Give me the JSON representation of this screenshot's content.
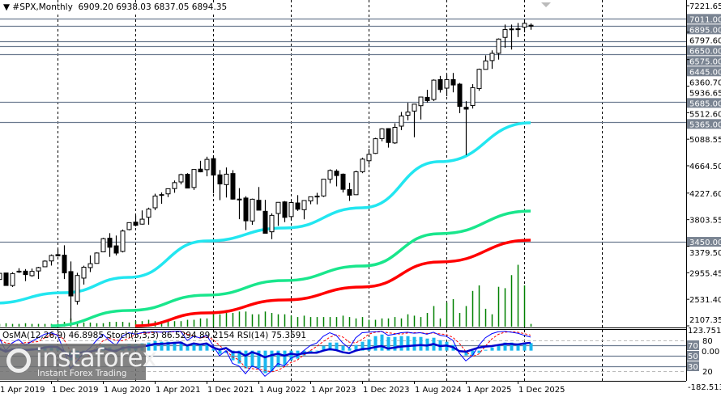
{
  "header": {
    "symbol": "#SPX,Monthly",
    "ohlc": "6909.20 6938.03 6837.05 6894.35"
  },
  "indicator_header": "OsMA(12,26,9) 46.8985  Stoch(5,3,3) 86.5294 89.2154  RSI(14) 75.3591",
  "logo": {
    "name": "instaforex",
    "tagline": "Instant Forex Trading"
  },
  "colors": {
    "background": "#ffffff",
    "ma_fast": "#22e6f0",
    "ma_mid": "#19e68c",
    "ma_slow": "#ff0000",
    "volume": "#008000",
    "level_line": "#6b7a8f",
    "level_label_bg": "#7a8492",
    "rsi": "#0000cc",
    "stoch_main": "#0000ff",
    "stoch_signal": "#ff0000",
    "osma": "#1ab8f0"
  },
  "chart_data": {
    "type": "candlestick",
    "timeframe": "Monthly",
    "first_month": "2019-03",
    "ylim": [
      2107.35,
      7221.65
    ],
    "price_ticks": [
      "7221.65",
      "6797.60",
      "6360.70",
      "5936.65",
      "5512.60",
      "5088.55",
      "4664.50",
      "4227.60",
      "3803.55",
      "3379.50",
      "2955.45",
      "2531.40",
      "2107.35"
    ],
    "levels": [
      {
        "value": 7011.0,
        "label": "7011.00"
      },
      {
        "value": 6895.0,
        "label": "6895.00"
      },
      {
        "value": 6650.0,
        "label": "6650.00"
      },
      {
        "value": 6575.0,
        "label": "6575.00"
      },
      {
        "value": 6445.0,
        "label": "6445.00"
      },
      {
        "value": 5685.0,
        "label": "5685.00"
      },
      {
        "value": 5365.0,
        "label": "5365.00"
      },
      {
        "value": 3450.0,
        "label": "3450.00"
      }
    ],
    "time_labels": [
      "1 Apr 2019",
      "1 Dec 2019",
      "1 Aug 2020",
      "1 Apr 2021",
      "1 Dec 2021",
      "1 Aug 2022",
      "1 Apr 2023",
      "1 Dec 2023",
      "1 Aug 2024",
      "1 Apr 2025",
      "1 Dec 2025"
    ],
    "ohlc": [
      [
        2798,
        2860,
        2722,
        2834
      ],
      [
        2848,
        2954,
        2848,
        2946
      ],
      [
        2952,
        2954,
        2750,
        2752
      ],
      [
        2751,
        2964,
        2728,
        2942
      ],
      [
        2971,
        3028,
        2952,
        2980
      ],
      [
        2981,
        3014,
        2822,
        2926
      ],
      [
        2909,
        3022,
        2892,
        2977
      ],
      [
        2984,
        3050,
        2856,
        3038
      ],
      [
        3051,
        3154,
        3051,
        3141
      ],
      [
        3144,
        3248,
        3070,
        3231
      ],
      [
        3245,
        3338,
        3214,
        3226
      ],
      [
        3236,
        3394,
        2855,
        2954
      ],
      [
        2974,
        3136,
        2192,
        2585
      ],
      [
        2499,
        2955,
        2447,
        2912
      ],
      [
        2870,
        3068,
        2767,
        3044
      ],
      [
        3038,
        3233,
        2966,
        3100
      ],
      [
        3105,
        3280,
        3101,
        3271
      ],
      [
        3289,
        3514,
        3284,
        3500
      ],
      [
        3507,
        3588,
        3209,
        3363
      ],
      [
        3385,
        3550,
        3234,
        3270
      ],
      [
        3296,
        3646,
        3280,
        3622
      ],
      [
        3645,
        3760,
        3633,
        3756
      ],
      [
        3764,
        3871,
        3695,
        3714
      ],
      [
        3732,
        3951,
        3725,
        3811
      ],
      [
        3842,
        3995,
        3723,
        3973
      ],
      [
        3993,
        4218,
        3956,
        4181
      ],
      [
        4192,
        4238,
        4057,
        4204
      ],
      [
        4216,
        4302,
        4164,
        4298
      ],
      [
        4300,
        4429,
        4233,
        4395
      ],
      [
        4406,
        4538,
        4367,
        4523
      ],
      [
        4528,
        4546,
        4306,
        4308
      ],
      [
        4318,
        4608,
        4279,
        4605
      ],
      [
        4610,
        4744,
        4560,
        4567
      ],
      [
        4602,
        4809,
        4496,
        4766
      ],
      [
        4778,
        4819,
        4223,
        4516
      ],
      [
        4519,
        4596,
        4115,
        4374
      ],
      [
        4363,
        4637,
        4157,
        4530
      ],
      [
        4540,
        4594,
        4124,
        4132
      ],
      [
        4131,
        4307,
        3811,
        4132
      ],
      [
        4149,
        4178,
        3637,
        3785
      ],
      [
        3782,
        4140,
        3721,
        4130
      ],
      [
        4113,
        4325,
        3955,
        3955
      ],
      [
        3937,
        4120,
        3585,
        3586
      ],
      [
        3610,
        3905,
        3492,
        3872
      ],
      [
        3902,
        4081,
        3705,
        4080
      ],
      [
        4087,
        4101,
        3764,
        3840
      ],
      [
        3853,
        4095,
        3795,
        4077
      ],
      [
        4070,
        4195,
        3943,
        3970
      ],
      [
        3963,
        4110,
        3809,
        4109
      ],
      [
        4103,
        4171,
        4050,
        4169
      ],
      [
        4166,
        4232,
        4048,
        4180
      ],
      [
        4182,
        4448,
        4166,
        4450
      ],
      [
        4450,
        4607,
        4385,
        4589
      ],
      [
        4578,
        4607,
        4335,
        4508
      ],
      [
        4530,
        4541,
        4238,
        4288
      ],
      [
        4284,
        4393,
        4103,
        4194
      ],
      [
        4202,
        4587,
        4197,
        4568
      ],
      [
        4569,
        4794,
        4546,
        4770
      ],
      [
        4745,
        4932,
        4682,
        4846
      ],
      [
        4862,
        5111,
        4853,
        5096
      ],
      [
        5098,
        5264,
        5056,
        5254
      ],
      [
        5258,
        5264,
        4954,
        5036
      ],
      [
        5029,
        5342,
        5012,
        5278
      ],
      [
        5297,
        5524,
        5234,
        5460
      ],
      [
        5471,
        5670,
        5391,
        5522
      ],
      [
        5538,
        5651,
        5120,
        5648
      ],
      [
        5624,
        5767,
        5403,
        5762
      ],
      [
        5757,
        5878,
        5674,
        5705
      ],
      [
        5723,
        6044,
        5697,
        6032
      ],
      [
        6040,
        6100,
        5833,
        5882
      ],
      [
        5904,
        6128,
        5774,
        6041
      ],
      [
        6041,
        6147,
        5837,
        5955
      ],
      [
        5968,
        5987,
        5505,
        5612
      ],
      [
        5598,
        5696,
        4835,
        5569
      ],
      [
        5626,
        5968,
        5578,
        5912
      ],
      [
        5897,
        6216,
        5862,
        6205
      ],
      [
        6204,
        6428,
        6201,
        6339
      ],
      [
        6345,
        6508,
        6212,
        6460
      ],
      [
        6461,
        6699,
        6360,
        6688
      ],
      [
        6715,
        6920,
        6550,
        6840
      ],
      [
        6850,
        6920,
        6521,
        6849
      ],
      [
        6852,
        6945,
        6720,
        6845
      ],
      [
        6878,
        7002,
        6796,
        6939
      ],
      [
        6909.2,
        6938.03,
        6837.05,
        6894.35
      ]
    ],
    "moving_averages": [
      {
        "color_key": "ma_fast",
        "points": [
          [
            0,
            2469
          ],
          [
            11,
            2637
          ],
          [
            21,
            2882
          ],
          [
            33,
            3463
          ],
          [
            45,
            3670
          ],
          [
            57,
            3993
          ],
          [
            69,
            4730
          ],
          [
            83,
            5350
          ]
        ]
      },
      {
        "color_key": "ma_mid",
        "points": [
          [
            9,
            2107
          ],
          [
            21,
            2353
          ],
          [
            33,
            2598
          ],
          [
            45,
            2830
          ],
          [
            57,
            3063
          ],
          [
            69,
            3580
          ],
          [
            83,
            3941
          ]
        ]
      },
      {
        "color_key": "ma_slow",
        "points": [
          [
            22,
            2107
          ],
          [
            33,
            2314
          ],
          [
            45,
            2521
          ],
          [
            57,
            2727
          ],
          [
            69,
            3128
          ],
          [
            83,
            3477
          ]
        ]
      }
    ],
    "volume_relative": [
      0.04,
      0.04,
      0.05,
      0.04,
      0.04,
      0.05,
      0.04,
      0.04,
      0.04,
      0.04,
      0.05,
      0.07,
      0.12,
      0.07,
      0.06,
      0.06,
      0.05,
      0.05,
      0.07,
      0.07,
      0.07,
      0.06,
      0.08,
      0.08,
      0.1,
      0.08,
      0.08,
      0.08,
      0.08,
      0.08,
      0.1,
      0.1,
      0.12,
      0.12,
      0.22,
      0.18,
      0.2,
      0.2,
      0.22,
      0.22,
      0.18,
      0.18,
      0.22,
      0.2,
      0.18,
      0.18,
      0.16,
      0.14,
      0.16,
      0.14,
      0.14,
      0.14,
      0.14,
      0.14,
      0.16,
      0.14,
      0.12,
      0.14,
      0.1,
      0.1,
      0.12,
      0.12,
      0.14,
      0.12,
      0.18,
      0.16,
      0.14,
      0.2,
      0.3,
      0.12,
      0.35,
      0.4,
      0.2,
      0.3,
      0.52,
      0.6,
      0.26,
      0.18,
      0.58,
      0.56,
      0.75,
      0.9,
      0.6,
      0.04
    ],
    "indicators": {
      "osma_range": [
        -182.5137,
        123.7516
      ],
      "levels": [
        "80",
        "70",
        "50",
        "30",
        "20"
      ],
      "zero_label": "0.00",
      "rsi": [
        62,
        64,
        58,
        62,
        63,
        61,
        62,
        63,
        66,
        68,
        67,
        58,
        48,
        55,
        57,
        58,
        61,
        65,
        61,
        59,
        65,
        67,
        66,
        68,
        70,
        73,
        73,
        74,
        75,
        76,
        70,
        74,
        72,
        74,
        66,
        62,
        65,
        57,
        57,
        50,
        57,
        53,
        47,
        51,
        54,
        50,
        54,
        52,
        55,
        56,
        56,
        60,
        63,
        61,
        57,
        55,
        60,
        63,
        64,
        67,
        69,
        64,
        66,
        68,
        69,
        70,
        71,
        70,
        73,
        69,
        70,
        67,
        59,
        58,
        62,
        66,
        68,
        69,
        71,
        73,
        73,
        72,
        74,
        75.3591
      ],
      "stoch_k": [
        80,
        85,
        60,
        75,
        82,
        70,
        78,
        85,
        92,
        95,
        90,
        60,
        25,
        40,
        55,
        65,
        80,
        92,
        80,
        70,
        88,
        95,
        92,
        95,
        96,
        97,
        96,
        97,
        98,
        98,
        80,
        88,
        85,
        90,
        70,
        50,
        60,
        35,
        30,
        15,
        30,
        25,
        10,
        20,
        35,
        30,
        45,
        50,
        60,
        70,
        75,
        88,
        95,
        90,
        75,
        65,
        85,
        95,
        96,
        97,
        98,
        90,
        92,
        95,
        96,
        94,
        95,
        92,
        96,
        90,
        88,
        80,
        55,
        40,
        50,
        70,
        85,
        93,
        97,
        98,
        96,
        94,
        90,
        86.5294
      ],
      "osma": [
        15,
        20,
        10,
        15,
        20,
        10,
        15,
        20,
        30,
        35,
        25,
        -10,
        -60,
        -45,
        -25,
        -5,
        15,
        35,
        20,
        10,
        30,
        40,
        40,
        45,
        50,
        60,
        55,
        55,
        55,
        55,
        35,
        45,
        40,
        45,
        10,
        -20,
        -15,
        -60,
        -80,
        -110,
        -100,
        -110,
        -140,
        -130,
        -100,
        -90,
        -60,
        -50,
        -30,
        -10,
        0,
        30,
        50,
        50,
        30,
        15,
        35,
        55,
        70,
        90,
        100,
        85,
        85,
        90,
        90,
        85,
        85,
        75,
        80,
        65,
        55,
        35,
        0,
        -30,
        -30,
        -15,
        5,
        20,
        35,
        50,
        50,
        45,
        48,
        46.8985
      ]
    }
  }
}
